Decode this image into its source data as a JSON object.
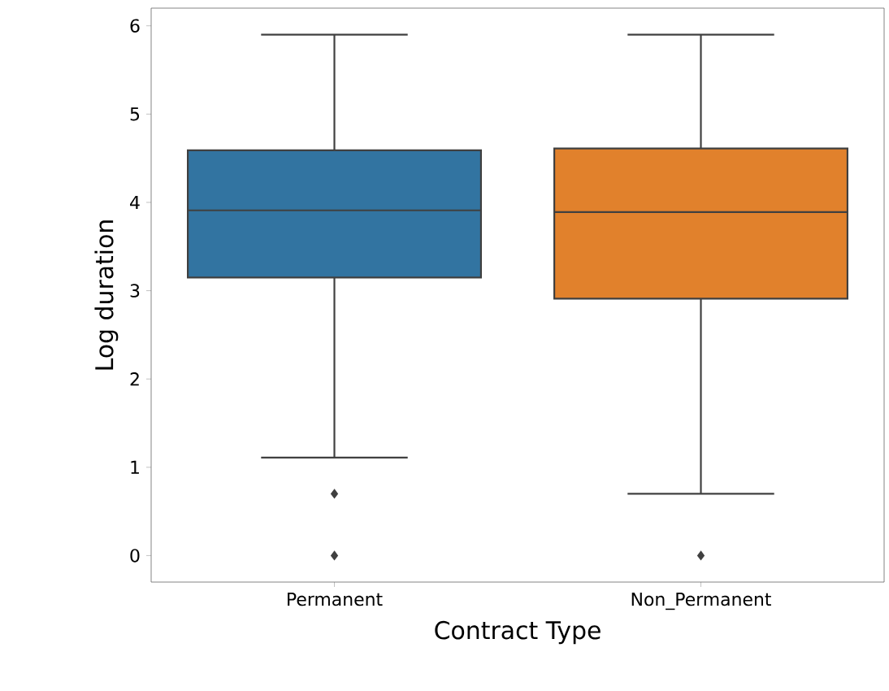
{
  "chart_data": {
    "type": "box",
    "xlabel": "Contract Type",
    "ylabel": "Log duration",
    "categories": [
      "Permanent",
      "Non_Permanent"
    ],
    "colors": [
      "#3274a1",
      "#e1812c"
    ],
    "boxes": [
      {
        "low": 1.11,
        "q1": 3.15,
        "median": 3.91,
        "q3": 4.59,
        "high": 5.9,
        "outliers": [
          0.7,
          0
        ]
      },
      {
        "low": 0.7,
        "q1": 2.91,
        "median": 3.89,
        "q3": 4.61,
        "high": 5.9,
        "outliers": [
          0
        ]
      }
    ],
    "ylim": [
      -0.3,
      6.2
    ],
    "yticks": [
      0,
      1,
      2,
      3,
      4,
      5,
      6
    ],
    "grid": false,
    "marker": "diamond"
  }
}
